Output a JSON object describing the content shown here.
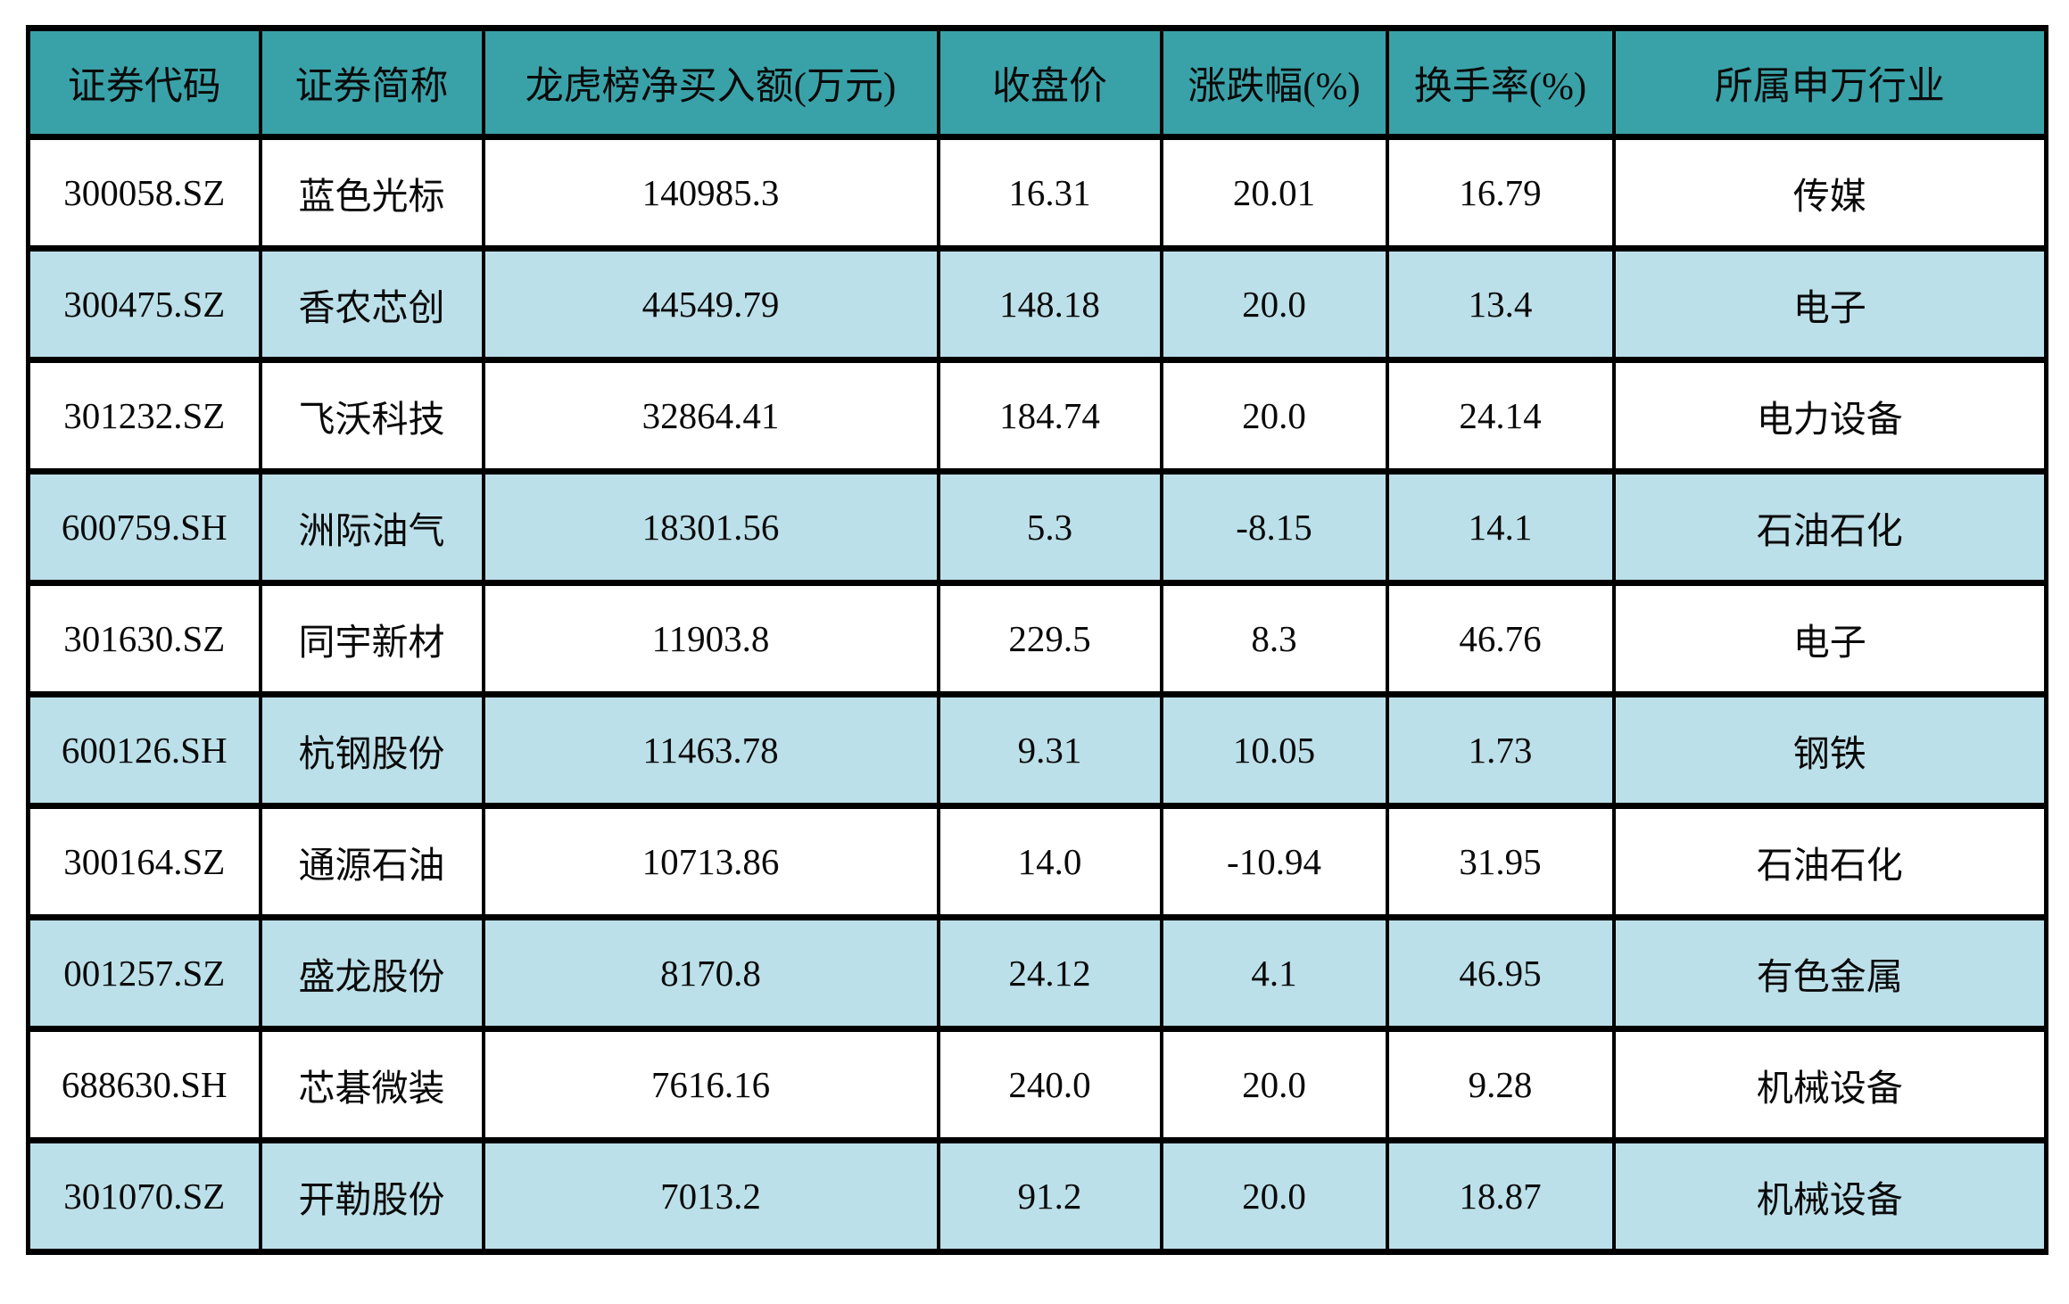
{
  "chart_data": {
    "type": "table",
    "columns": [
      "证券代码",
      "证券简称",
      "龙虎榜净买入额(万元)",
      "收盘价",
      "涨跌幅(%)",
      "换手率(%)",
      "所属申万行业"
    ],
    "rows": [
      [
        "300058.SZ",
        "蓝色光标",
        "140985.3",
        "16.31",
        "20.01",
        "16.79",
        "传媒"
      ],
      [
        "300475.SZ",
        "香农芯创",
        "44549.79",
        "148.18",
        "20.0",
        "13.4",
        "电子"
      ],
      [
        "301232.SZ",
        "飞沃科技",
        "32864.41",
        "184.74",
        "20.0",
        "24.14",
        "电力设备"
      ],
      [
        "600759.SH",
        "洲际油气",
        "18301.56",
        "5.3",
        "-8.15",
        "14.1",
        "石油石化"
      ],
      [
        "301630.SZ",
        "同宇新材",
        "11903.8",
        "229.5",
        "8.3",
        "46.76",
        "电子"
      ],
      [
        "600126.SH",
        "杭钢股份",
        "11463.78",
        "9.31",
        "10.05",
        "1.73",
        "钢铁"
      ],
      [
        "300164.SZ",
        "通源石油",
        "10713.86",
        "14.0",
        "-10.94",
        "31.95",
        "石油石化"
      ],
      [
        "001257.SZ",
        "盛龙股份",
        "8170.8",
        "24.12",
        "4.1",
        "46.95",
        "有色金属"
      ],
      [
        "688630.SH",
        "芯碁微装",
        "7616.16",
        "240.0",
        "20.0",
        "9.28",
        "机械设备"
      ],
      [
        "301070.SZ",
        "开勒股份",
        "7013.2",
        "91.2",
        "20.0",
        "18.87",
        "机械设备"
      ]
    ]
  },
  "colors": {
    "header_bg": "#39A2A8",
    "row_bg": "#FFFFFF",
    "row_alt_bg": "#BCE0E9",
    "border": "#000000",
    "text": "#0A0A0A"
  }
}
